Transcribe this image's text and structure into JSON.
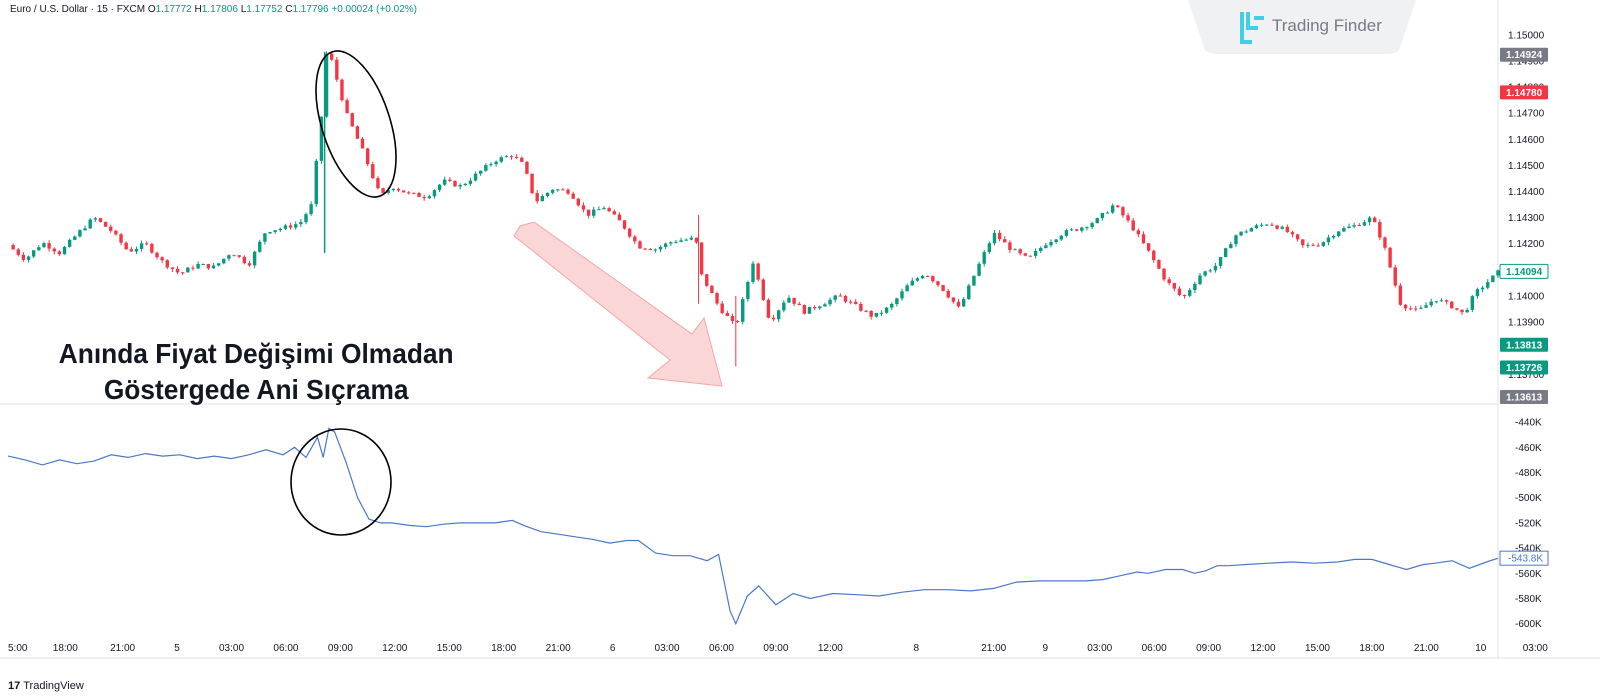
{
  "header": {
    "symbol": "Euro / U.S. Dollar · 15 · FXCM",
    "open_label": "O",
    "open": "1.17772",
    "high_label": "H",
    "high": "1.17806",
    "low_label": "L",
    "low": "1.17752",
    "close_label": "C",
    "close": "1.17796",
    "change": "+0.00024 (+0.02%)"
  },
  "logo": {
    "text": "Trading Finder",
    "icon": "trading-finder-logo-icon"
  },
  "annotation": {
    "line1": "Anında Fiyat Değişimi Olmadan",
    "line2": "Göstergede Ani Sıçrama"
  },
  "brand": {
    "mark": "17",
    "text": "TradingView"
  },
  "colors": {
    "up": "#089981",
    "down": "#f23645",
    "indicator": "#4a78c9",
    "arrow": "#f8c8c8"
  },
  "chart_data": [
    {
      "type": "candlestick",
      "ylim": [
        1.1359,
        1.1508
      ],
      "yticks": [
        "1.15000",
        "1.14900",
        "1.14800",
        "1.14700",
        "1.14600",
        "1.14500",
        "1.14400",
        "1.14300",
        "1.14200",
        "1.14100",
        "1.14000",
        "1.13900",
        "1.13800",
        "1.13700"
      ],
      "price_labels": [
        {
          "text": "1.14924",
          "value": 1.14924,
          "color": "#787b86"
        },
        {
          "text": "1.14780",
          "value": 1.1478,
          "color": "#f23645"
        },
        {
          "text": "1.14094",
          "value": 1.14094,
          "color": "#ffffff",
          "border": "#089981",
          "textcolor": "#089981"
        },
        {
          "text": "1.13813",
          "value": 1.13813,
          "color": "#089981"
        },
        {
          "text": "1.13726",
          "value": 1.13726,
          "color": "#089981"
        },
        {
          "text": "1.13613",
          "value": 1.13613,
          "color": "#787b86"
        }
      ],
      "close_path": [
        [
          0,
          1.14195
        ],
        [
          6,
          1.1414
        ],
        [
          12,
          1.14205
        ],
        [
          18,
          1.14165
        ],
        [
          24,
          1.14235
        ],
        [
          30,
          1.143
        ],
        [
          36,
          1.1425
        ],
        [
          42,
          1.1417
        ],
        [
          48,
          1.142
        ],
        [
          54,
          1.1413
        ],
        [
          60,
          1.14085
        ],
        [
          66,
          1.1412
        ],
        [
          72,
          1.1411
        ],
        [
          78,
          1.1417
        ],
        [
          84,
          1.1412
        ],
        [
          90,
          1.1425
        ],
        [
          96,
          1.1426
        ],
        [
          102,
          1.1428
        ],
        [
          106,
          1.1435
        ],
        [
          110,
          1.1475
        ],
        [
          111,
          1.1493
        ],
        [
          113,
          1.149
        ],
        [
          118,
          1.147
        ],
        [
          124,
          1.1455
        ],
        [
          130,
          1.1438
        ],
        [
          134,
          1.1442
        ],
        [
          140,
          1.1439
        ],
        [
          146,
          1.1438
        ],
        [
          152,
          1.1444
        ],
        [
          158,
          1.1442
        ],
        [
          164,
          1.1447
        ],
        [
          170,
          1.1452
        ],
        [
          176,
          1.1454
        ],
        [
          180,
          1.145
        ],
        [
          184,
          1.1436
        ],
        [
          190,
          1.1441
        ],
        [
          196,
          1.144
        ],
        [
          202,
          1.1431
        ],
        [
          208,
          1.1434
        ],
        [
          214,
          1.1428
        ],
        [
          220,
          1.1419
        ],
        [
          226,
          1.1418
        ],
        [
          232,
          1.1421
        ],
        [
          240,
          1.1422
        ],
        [
          242,
          1.1408
        ],
        [
          248,
          1.1396
        ],
        [
          254,
          1.1388
        ],
        [
          260,
          1.1413
        ],
        [
          266,
          1.139
        ],
        [
          272,
          1.14
        ],
        [
          278,
          1.1394
        ],
        [
          284,
          1.1397
        ],
        [
          290,
          1.14
        ],
        [
          296,
          1.1396
        ],
        [
          302,
          1.1392
        ],
        [
          308,
          1.1396
        ],
        [
          314,
          1.1404
        ],
        [
          320,
          1.1409
        ],
        [
          326,
          1.1403
        ],
        [
          332,
          1.1395
        ],
        [
          338,
          1.141
        ],
        [
          344,
          1.1424
        ],
        [
          350,
          1.1418
        ],
        [
          356,
          1.1414
        ],
        [
          362,
          1.142
        ],
        [
          368,
          1.1424
        ],
        [
          374,
          1.1426
        ],
        [
          380,
          1.1429
        ],
        [
          386,
          1.1435
        ],
        [
          392,
          1.1427
        ],
        [
          398,
          1.1417
        ],
        [
          404,
          1.1406
        ],
        [
          410,
          1.1399
        ],
        [
          416,
          1.1408
        ],
        [
          422,
          1.1412
        ],
        [
          428,
          1.1423
        ],
        [
          434,
          1.1426
        ],
        [
          440,
          1.1428
        ],
        [
          446,
          1.1425
        ],
        [
          452,
          1.1419
        ],
        [
          458,
          1.142
        ],
        [
          464,
          1.1425
        ],
        [
          470,
          1.1427
        ],
        [
          476,
          1.143
        ],
        [
          480,
          1.142
        ],
        [
          486,
          1.1397
        ],
        [
          492,
          1.1394
        ],
        [
          498,
          1.1399
        ],
        [
          504,
          1.1396
        ],
        [
          508,
          1.1393
        ],
        [
          512,
          1.1401
        ],
        [
          516,
          1.1405
        ],
        [
          520,
          1.1409
        ]
      ]
    },
    {
      "type": "line",
      "ylim": [
        -605000,
        -432000
      ],
      "yticks": [
        "-440K",
        "-460K",
        "-480K",
        "-500K",
        "-520K",
        "-540K",
        "-560K",
        "-580K",
        "-600K"
      ],
      "last_label": "-543.8K",
      "series": [
        {
          "values": [
            [
              0,
              -467000
            ],
            [
              6,
              -470000
            ],
            [
              12,
              -474000
            ],
            [
              18,
              -470000
            ],
            [
              24,
              -473000
            ],
            [
              30,
              -471000
            ],
            [
              36,
              -466000
            ],
            [
              42,
              -468000
            ],
            [
              48,
              -465000
            ],
            [
              54,
              -467000
            ],
            [
              60,
              -466000
            ],
            [
              66,
              -469000
            ],
            [
              72,
              -467000
            ],
            [
              78,
              -469000
            ],
            [
              84,
              -466000
            ],
            [
              90,
              -462000
            ],
            [
              96,
              -466000
            ],
            [
              100,
              -460000
            ],
            [
              104,
              -468000
            ],
            [
              108,
              -452000
            ],
            [
              110,
              -468000
            ],
            [
              112,
              -445000
            ],
            [
              114,
              -448000
            ],
            [
              118,
              -472000
            ],
            [
              122,
              -500000
            ],
            [
              126,
              -517000
            ],
            [
              130,
              -520000
            ],
            [
              134,
              -520000
            ],
            [
              140,
              -522000
            ],
            [
              146,
              -523000
            ],
            [
              152,
              -521000
            ],
            [
              158,
              -520000
            ],
            [
              164,
              -520000
            ],
            [
              170,
              -520000
            ],
            [
              176,
              -518000
            ],
            [
              180,
              -522000
            ],
            [
              186,
              -527000
            ],
            [
              192,
              -529000
            ],
            [
              198,
              -531000
            ],
            [
              204,
              -533000
            ],
            [
              210,
              -536000
            ],
            [
              216,
              -534000
            ],
            [
              220,
              -534000
            ],
            [
              226,
              -544000
            ],
            [
              232,
              -546000
            ],
            [
              238,
              -546000
            ],
            [
              244,
              -550000
            ],
            [
              248,
              -545000
            ],
            [
              252,
              -590000
            ],
            [
              254,
              -600000
            ],
            [
              258,
              -578000
            ],
            [
              262,
              -570000
            ],
            [
              268,
              -585000
            ],
            [
              274,
              -576000
            ],
            [
              280,
              -580000
            ],
            [
              288,
              -576000
            ],
            [
              296,
              -577000
            ],
            [
              304,
              -578000
            ],
            [
              312,
              -575000
            ],
            [
              320,
              -573000
            ],
            [
              328,
              -573000
            ],
            [
              336,
              -574000
            ],
            [
              344,
              -572000
            ],
            [
              352,
              -567000
            ],
            [
              360,
              -566000
            ],
            [
              368,
              -566000
            ],
            [
              376,
              -566000
            ],
            [
              382,
              -565000
            ],
            [
              388,
              -562000
            ],
            [
              394,
              -559000
            ],
            [
              398,
              -560000
            ],
            [
              404,
              -557000
            ],
            [
              410,
              -557000
            ],
            [
              414,
              -560000
            ],
            [
              418,
              -558000
            ],
            [
              422,
              -554000
            ],
            [
              426,
              -554000
            ],
            [
              432,
              -553000
            ],
            [
              440,
              -552000
            ],
            [
              448,
              -551000
            ],
            [
              456,
              -552000
            ],
            [
              464,
              -551000
            ],
            [
              470,
              -549000
            ],
            [
              476,
              -549000
            ],
            [
              482,
              -553000
            ],
            [
              488,
              -557000
            ],
            [
              494,
              -553000
            ],
            [
              498,
              -552000
            ],
            [
              504,
              -550000
            ],
            [
              510,
              -556000
            ],
            [
              516,
              -551000
            ],
            [
              520,
              -548000
            ]
          ]
        }
      ]
    }
  ],
  "time_axis": [
    {
      "label": "5:00",
      "x": 0
    },
    {
      "label": "18:00",
      "x": 20
    },
    {
      "label": "21:00",
      "x": 40
    },
    {
      "label": "5",
      "x": 59
    },
    {
      "label": "03:00",
      "x": 78
    },
    {
      "label": "06:00",
      "x": 97
    },
    {
      "label": "09:00",
      "x": 116
    },
    {
      "label": "12:00",
      "x": 135
    },
    {
      "label": "15:00",
      "x": 154
    },
    {
      "label": "18:00",
      "x": 173
    },
    {
      "label": "21:00",
      "x": 192
    },
    {
      "label": "6",
      "x": 211
    },
    {
      "label": "03:00",
      "x": 230
    },
    {
      "label": "06:00",
      "x": 249
    },
    {
      "label": "09:00",
      "x": 268
    },
    {
      "label": "12:00",
      "x": 287
    },
    {
      "label": "8",
      "x": 317
    },
    {
      "label": "21:00",
      "x": 344
    },
    {
      "label": "9",
      "x": 362
    },
    {
      "label": "03:00",
      "x": 381
    },
    {
      "label": "06:00",
      "x": 400
    },
    {
      "label": "09:00",
      "x": 419
    },
    {
      "label": "12:00",
      "x": 438
    },
    {
      "label": "15:00",
      "x": 457
    },
    {
      "label": "18:00",
      "x": 476
    },
    {
      "label": "21:00",
      "x": 495
    },
    {
      "label": "10",
      "x": 514
    },
    {
      "label": "03:00",
      "x": 533
    }
  ]
}
